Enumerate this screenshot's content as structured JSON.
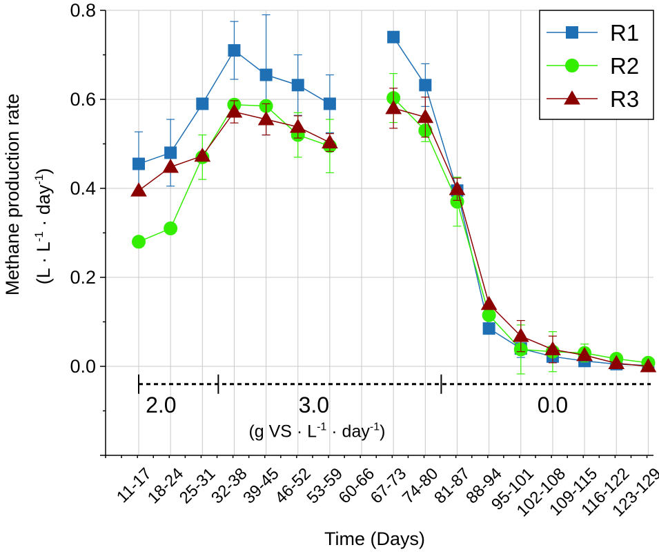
{
  "chart_data": {
    "type": "line",
    "title": "",
    "xlabel": "Time (Days)",
    "ylabel_line1": "Methane production rate",
    "ylabel_line2_parts": [
      "(L · L",
      "-1",
      " · day",
      "-1",
      ")"
    ],
    "categories": [
      "11-17",
      "18-24",
      "25-31",
      "32-38",
      "39-45",
      "46-52",
      "53-59",
      "60-66",
      "67-73",
      "74-80",
      "81-87",
      "88-94",
      "95-101",
      "102-108",
      "109-115",
      "116-122",
      "123-129"
    ],
    "ylim": [
      -0.2,
      0.8
    ],
    "yticks": [
      "0.0",
      "0.2",
      "0.4",
      "0.6",
      "0.8"
    ],
    "ytick_values": [
      0.0,
      0.2,
      0.4,
      0.6,
      0.8
    ],
    "grid": true,
    "legend_position": "top-right",
    "series": [
      {
        "name": "R1",
        "color": "#1f6fb4",
        "marker": "square",
        "values": [
          0.455,
          0.48,
          0.59,
          0.71,
          0.655,
          0.632,
          0.59,
          null,
          0.74,
          0.632,
          0.395,
          0.085,
          0.04,
          0.022,
          0.012,
          0.005,
          0.002
        ],
        "errors": [
          0.072,
          0.075,
          0.0,
          0.065,
          0.135,
          0.068,
          0.065,
          null,
          0.0,
          0.048,
          0.0,
          0.0,
          0.02,
          0.0,
          0.0,
          0.0,
          0.0
        ]
      },
      {
        "name": "R2",
        "color": "#33ee00",
        "marker": "circle",
        "values": [
          0.28,
          0.31,
          0.47,
          0.588,
          0.585,
          0.52,
          0.495,
          null,
          0.603,
          0.53,
          0.37,
          0.115,
          0.038,
          0.033,
          0.03,
          0.017,
          0.008
        ],
        "errors": [
          0.0,
          0.0,
          0.05,
          0.0,
          0.0,
          0.05,
          0.06,
          null,
          0.055,
          0.025,
          0.055,
          0.0,
          0.055,
          0.045,
          0.02,
          0.0,
          0.0
        ]
      },
      {
        "name": "R3",
        "color": "#8b0000",
        "marker": "triangle",
        "values": [
          0.395,
          0.448,
          0.473,
          0.572,
          0.555,
          0.538,
          0.503,
          null,
          0.58,
          0.56,
          0.398,
          0.14,
          0.068,
          0.038,
          0.025,
          0.007,
          0.0
        ],
        "errors": [
          0.0,
          0.0,
          0.0,
          0.025,
          0.035,
          0.025,
          0.02,
          null,
          0.045,
          0.045,
          0.025,
          0.0,
          0.035,
          0.03,
          0.0,
          0.0,
          0.0
        ]
      }
    ],
    "annotations": {
      "phase_labels": [
        "2.0",
        "3.0",
        "0.0"
      ],
      "phase_boundaries_between_categories": [
        [
          2,
          3
        ],
        [
          9,
          10
        ]
      ],
      "phase_label_category_position": [
        0.7,
        5.5,
        13.0
      ],
      "phase_line_data_y": -0.04,
      "phase_label_data_y": -0.085,
      "unit_label_parts": [
        "(g VS · L",
        "-1",
        " · day",
        "-1",
        ")"
      ],
      "unit_label_data_y": -0.145,
      "unit_label_category_position": 5.6
    }
  }
}
